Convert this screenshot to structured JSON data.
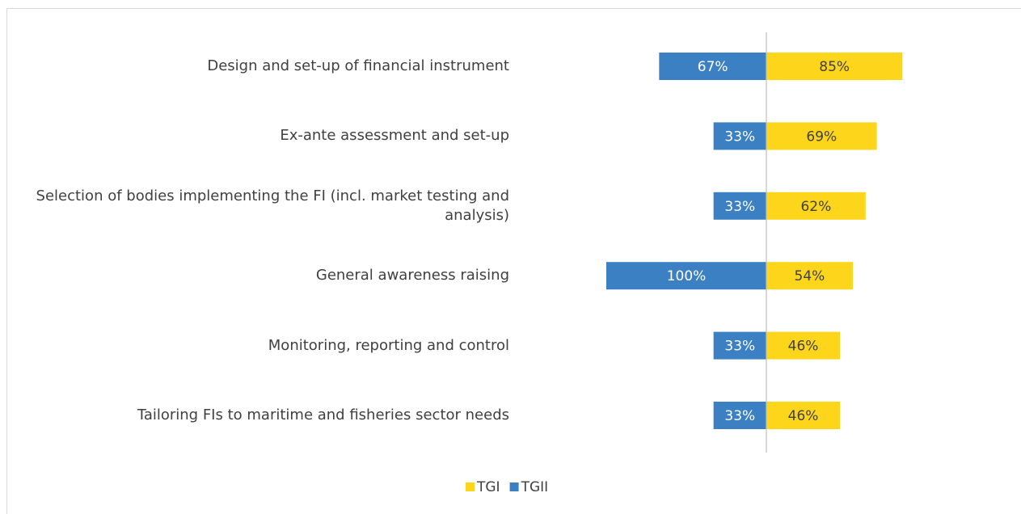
{
  "chart_data": {
    "type": "diverging-bar",
    "categories": [
      "Design and set-up of financial instrument",
      "Ex-ante assessment and set-up",
      "Selection of bodies implementing the FI (incl. market testing and analysis)",
      "General awareness raising",
      "Monitoring, reporting and control",
      "Tailoring FIs to maritime and fisheries sector needs"
    ],
    "series": [
      {
        "name": "TGI",
        "color": "#fdd51a",
        "side": "right",
        "values": [
          85,
          69,
          62,
          54,
          46,
          46
        ],
        "value_labels": [
          "85%",
          "69%",
          "62%",
          "54%",
          "46%",
          "46%"
        ]
      },
      {
        "name": "TGII",
        "color": "#3b80c2",
        "side": "left",
        "values": [
          67,
          33,
          33,
          100,
          33,
          33
        ],
        "value_labels": [
          "67%",
          "33%",
          "33%",
          "100%",
          "33%",
          "33%"
        ]
      }
    ],
    "legend": "bottom"
  }
}
